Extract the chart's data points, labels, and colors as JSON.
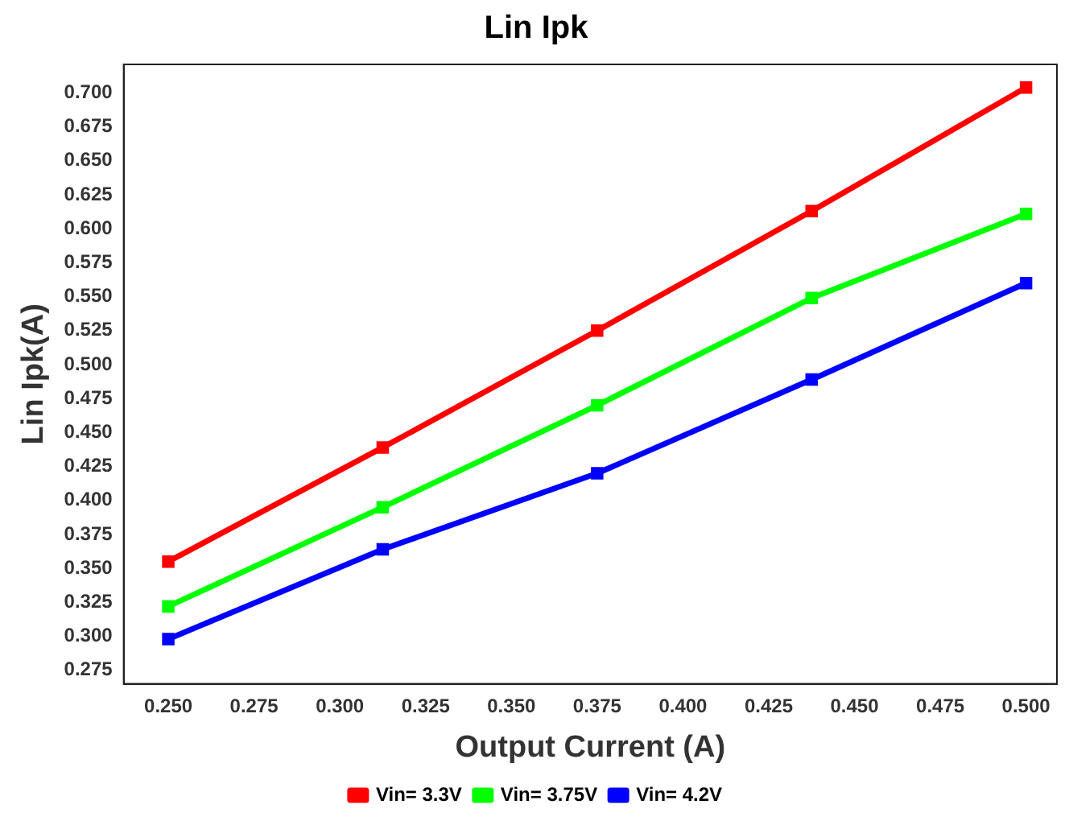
{
  "chart_data": {
    "type": "line",
    "title": "Lin Ipk",
    "xlabel": "Output Current (A)",
    "ylabel": "Lin Ipk(A)",
    "x": [
      0.25,
      0.3125,
      0.375,
      0.4375,
      0.5
    ],
    "series": [
      {
        "name": "Vin= 3.3V",
        "color": "#ff0000",
        "values": [
          0.355,
          0.439,
          0.525,
          0.613,
          0.704
        ]
      },
      {
        "name": "Vin= 3.75V",
        "color": "#00ff00",
        "values": [
          0.322,
          0.395,
          0.47,
          0.549,
          0.611
        ]
      },
      {
        "name": "Vin= 4.2V",
        "color": "#0000ff",
        "values": [
          0.298,
          0.364,
          0.42,
          0.489,
          0.56
        ]
      }
    ],
    "xlim": [
      0.237,
      0.509
    ],
    "xticks": [
      {
        "value": 0.25,
        "label": "0.250"
      },
      {
        "value": 0.275,
        "label": "0.275"
      },
      {
        "value": 0.3,
        "label": "0.300"
      },
      {
        "value": 0.325,
        "label": "0.325"
      },
      {
        "value": 0.35,
        "label": "0.350"
      },
      {
        "value": 0.375,
        "label": "0.375"
      },
      {
        "value": 0.4,
        "label": "0.400"
      },
      {
        "value": 0.425,
        "label": "0.425"
      },
      {
        "value": 0.45,
        "label": "0.450"
      },
      {
        "value": 0.475,
        "label": "0.475"
      },
      {
        "value": 0.5,
        "label": "0.500"
      }
    ],
    "ylim": [
      0.265,
      0.721
    ],
    "yticks": [
      {
        "value": 0.275,
        "label": "0.275"
      },
      {
        "value": 0.3,
        "label": "0.300"
      },
      {
        "value": 0.325,
        "label": "0.325"
      },
      {
        "value": 0.35,
        "label": "0.350"
      },
      {
        "value": 0.375,
        "label": "0.375"
      },
      {
        "value": 0.4,
        "label": "0.400"
      },
      {
        "value": 0.425,
        "label": "0.425"
      },
      {
        "value": 0.45,
        "label": "0.450"
      },
      {
        "value": 0.475,
        "label": "0.475"
      },
      {
        "value": 0.5,
        "label": "0.500"
      },
      {
        "value": 0.525,
        "label": "0.525"
      },
      {
        "value": 0.55,
        "label": "0.550"
      },
      {
        "value": 0.575,
        "label": "0.575"
      },
      {
        "value": 0.6,
        "label": "0.600"
      },
      {
        "value": 0.625,
        "label": "0.625"
      },
      {
        "value": 0.65,
        "label": "0.650"
      },
      {
        "value": 0.675,
        "label": "0.675"
      },
      {
        "value": 0.7,
        "label": "0.700"
      }
    ],
    "grid": false,
    "legend": "bottom",
    "marker": "square",
    "line_style": "solid"
  }
}
